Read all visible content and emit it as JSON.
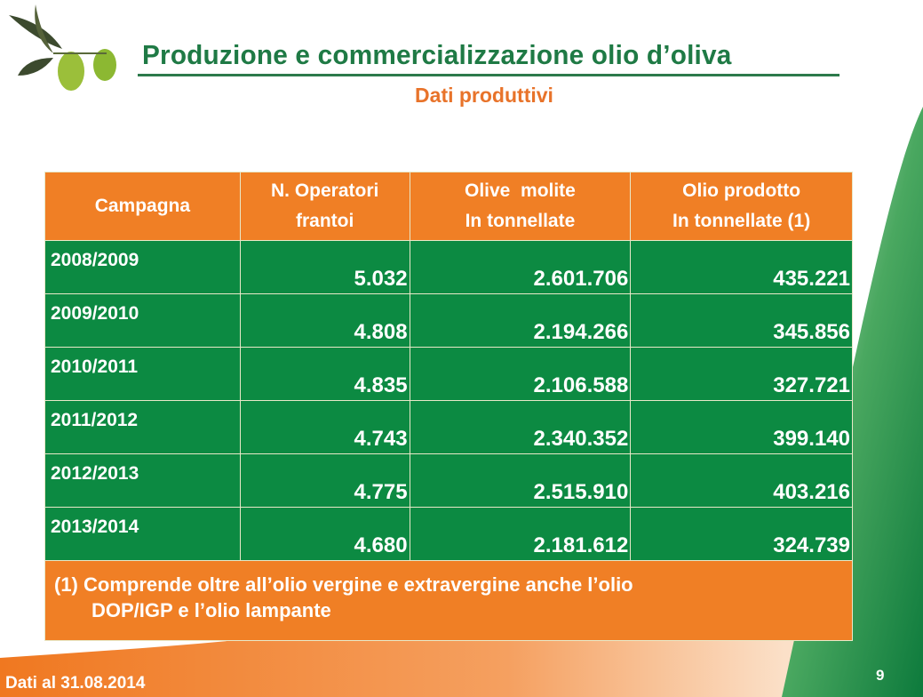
{
  "header": {
    "title": "Produzione e commercializzazione olio d’oliva",
    "subtitle": "Dati produttivi"
  },
  "table": {
    "columns": [
      {
        "line1": "Campagna",
        "line2": ""
      },
      {
        "line1": "N. Operatori",
        "line2": "frantoi"
      },
      {
        "line1": "Olive  molite",
        "line2": "In tonnellate"
      },
      {
        "line1": "Olio prodotto",
        "line2": "In tonnellate (1)"
      }
    ],
    "rows": [
      [
        "2008/2009",
        "5.032",
        "2.601.706",
        "435.221"
      ],
      [
        "2009/2010",
        "4.808",
        "2.194.266",
        "345.856"
      ],
      [
        "2010/2011",
        "4.835",
        "2.106.588",
        "327.721"
      ],
      [
        "2011/2012",
        "4.743",
        "2.340.352",
        "399.140"
      ],
      [
        "2012/2013",
        "4.775",
        "2.515.910",
        "403.216"
      ],
      [
        "2013/2014",
        "4.680",
        "2.181.612",
        "324.739"
      ]
    ],
    "note": {
      "line1": "(1) Comprende oltre all’olio vergine e extravergine anche l’olio",
      "line2": "DOP/IGP e l’olio lampante"
    }
  },
  "footer": {
    "date": "Dati al 31.08.2014",
    "page": "9"
  },
  "colors": {
    "green": "#0c8a42",
    "orange": "#f07f25",
    "title_green": "#1f7a45"
  }
}
